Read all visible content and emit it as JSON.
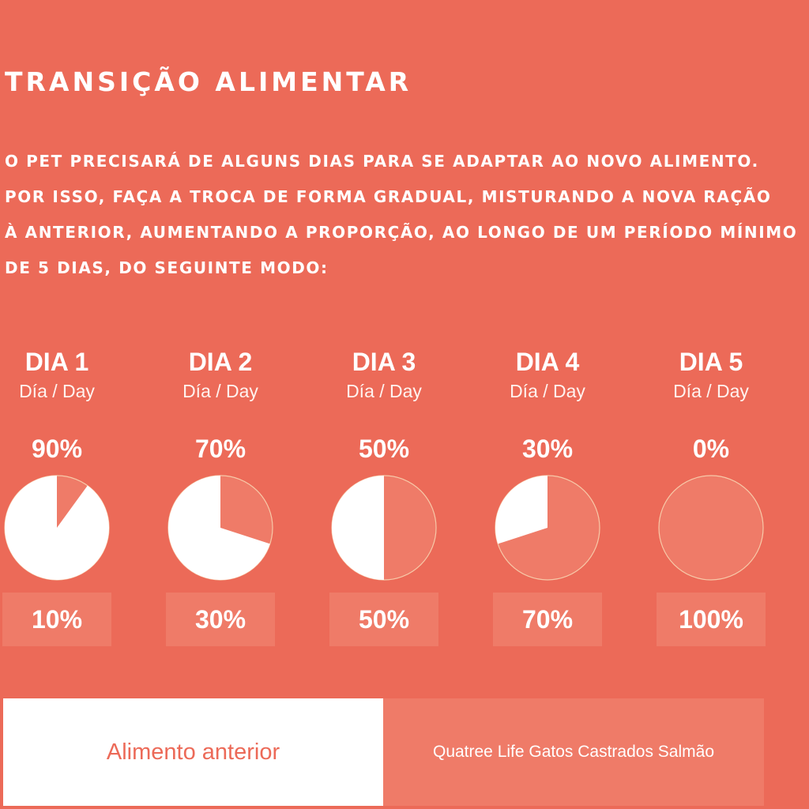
{
  "header": {
    "title": "TRANSIÇÃO ALIMENTAR",
    "intro_lines": [
      "O PET PRECISARÁ DE ALGUNS DIAS PARA SE ADAPTAR AO NOVO ALIMENTO.",
      "POR ISSO, FAÇA A TROCA DE FORMA GRADUAL, MISTURANDO A NOVA RAÇÃO",
      "À ANTERIOR, AUMENTANDO A PROPORÇÃO, AO LONGO DE UM PERÍODO MÍNIMO",
      "DE 5 DIAS, DO SEGUINTE MODO:"
    ]
  },
  "days": [
    {
      "label": "DIA 1",
      "sub": "Día / Day",
      "old_pct": "90%",
      "new_pct": "10%",
      "old_fraction": 0.9
    },
    {
      "label": "DIA 2",
      "sub": "Día / Day",
      "old_pct": "70%",
      "new_pct": "30%",
      "old_fraction": 0.7
    },
    {
      "label": "DIA 3",
      "sub": "Día / Day",
      "old_pct": "50%",
      "new_pct": "50%",
      "old_fraction": 0.5
    },
    {
      "label": "DIA 4",
      "sub": "Día / Day",
      "old_pct": "30%",
      "new_pct": "70%",
      "old_fraction": 0.3
    },
    {
      "label": "DIA 5",
      "sub": "Día / Day",
      "old_pct": "0%",
      "new_pct": "100%",
      "old_fraction": 0.0
    }
  ],
  "legend": {
    "old_food": "Alimento anterior",
    "new_food": "Quatree Life Gatos Castrados Salmão"
  },
  "colors": {
    "background": "#ec6a58",
    "old_food": "#ffffff",
    "new_food": "#ef7b68",
    "pie_outline": "#f7c9a8"
  }
}
